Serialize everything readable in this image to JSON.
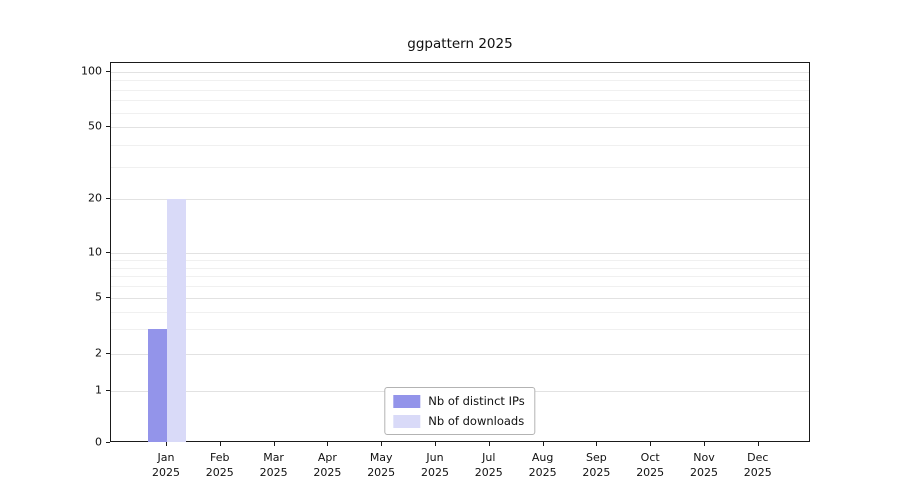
{
  "chart_data": {
    "type": "bar",
    "title": "ggpattern 2025",
    "categories": [
      "Jan",
      "Feb",
      "Mar",
      "Apr",
      "May",
      "Jun",
      "Jul",
      "Aug",
      "Sep",
      "Oct",
      "Nov",
      "Dec"
    ],
    "category_year": "2025",
    "series": [
      {
        "name": "Nb of distinct IPs",
        "color": "#9394ea",
        "values": [
          3,
          0,
          0,
          0,
          0,
          0,
          0,
          0,
          0,
          0,
          0,
          0
        ]
      },
      {
        "name": "Nb of downloads",
        "color": "#d9daf8",
        "values": [
          20,
          0,
          0,
          0,
          0,
          0,
          0,
          0,
          0,
          0,
          0,
          0
        ]
      }
    ],
    "y_ticks": [
      0,
      1,
      2,
      5,
      10,
      20,
      50,
      100
    ],
    "y_minor_ticks": [
      3,
      4,
      6,
      7,
      8,
      9,
      30,
      40,
      60,
      70,
      80,
      90
    ],
    "yscale": "log-like with 0 baseline",
    "ylim": [
      0,
      110
    ],
    "grid": true,
    "legend_position": "bottom-center",
    "axis_color": "#1a1a1a",
    "grid_color": "#e2e2e2"
  }
}
